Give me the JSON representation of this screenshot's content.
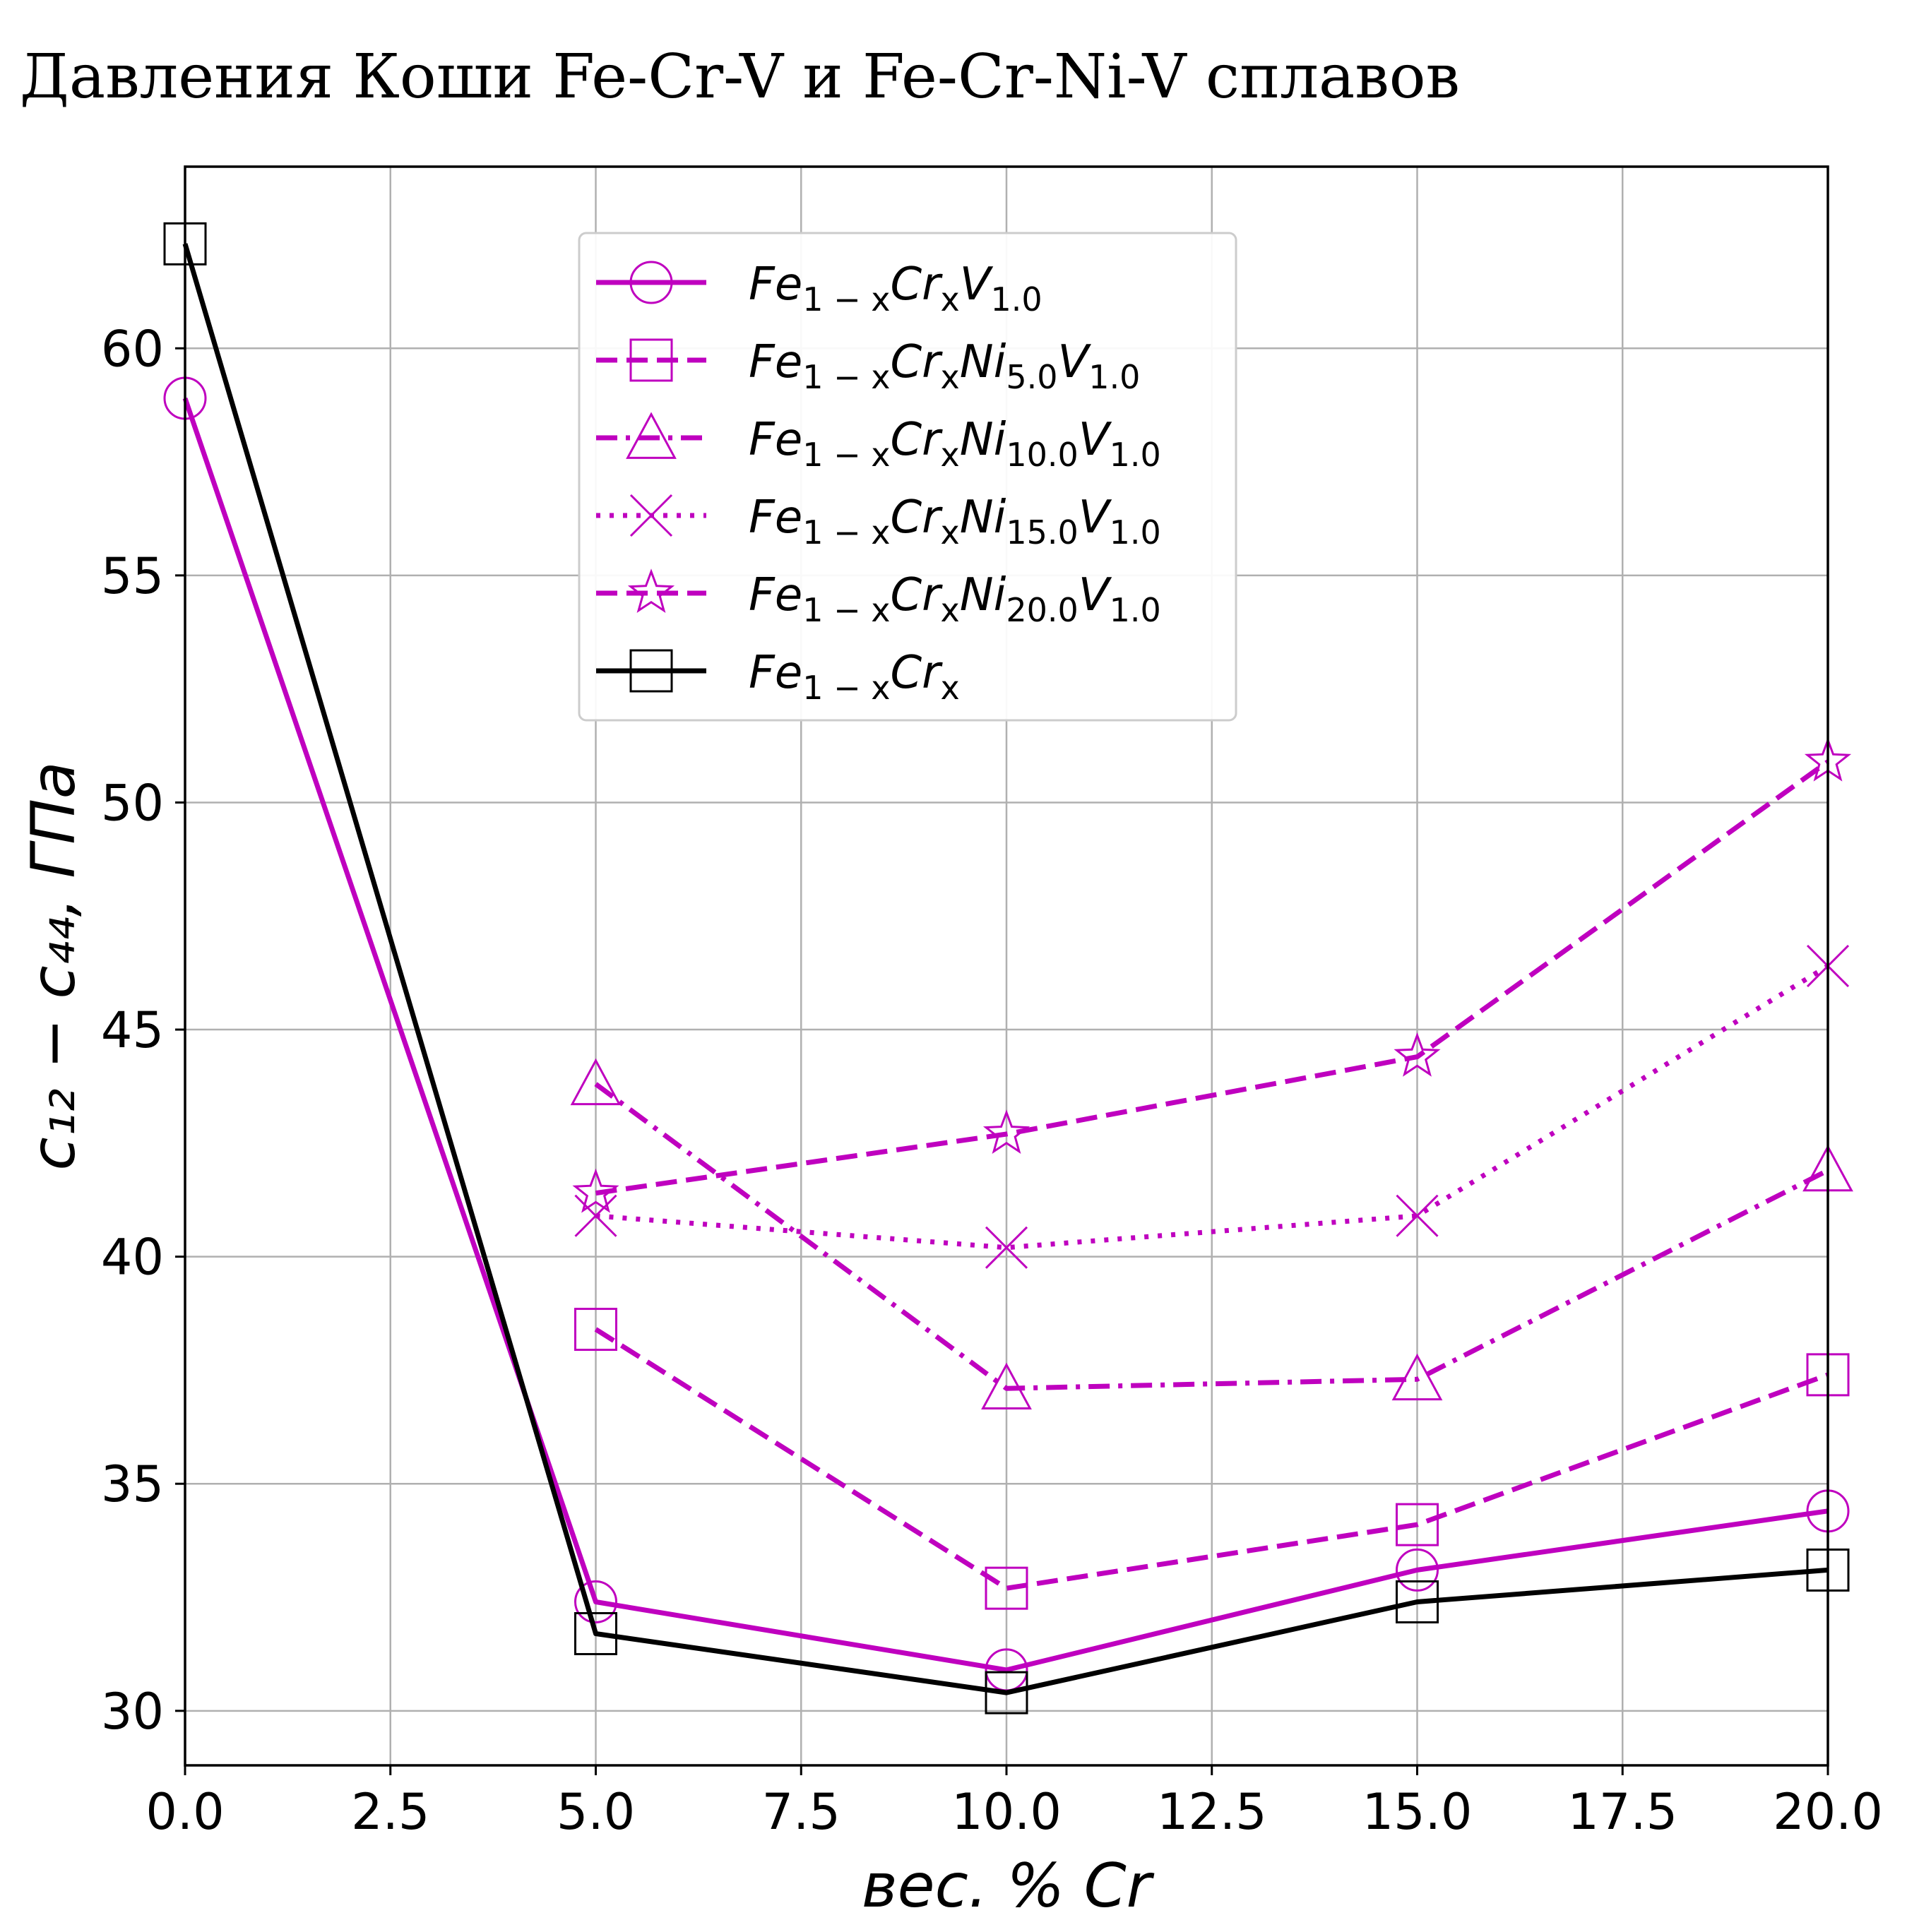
{
  "chart_data": {
    "type": "line",
    "title": "Давления Коши Fe-Cr-V и Fe-Cr-Ni-V сплавов",
    "xlabel": "вес. % Cr",
    "ylabel": "c₁₂ − c₄₄,  ГПа",
    "xlim": [
      0,
      20
    ],
    "ylim": [
      28.8,
      64
    ],
    "xticks": [
      "0.0",
      "2.5",
      "5.0",
      "7.5",
      "10.0",
      "12.5",
      "15.0",
      "17.5",
      "20.0"
    ],
    "yticks": [
      "30",
      "35",
      "40",
      "45",
      "50",
      "55",
      "60"
    ],
    "grid": true,
    "legend_position": "upper-center",
    "series": [
      {
        "name": "Fe1−xCrxV1.0",
        "legend_parts": [
          [
            "Fe",
            ""
          ],
          [
            "1 − x",
            "sub"
          ],
          [
            "Cr",
            ""
          ],
          [
            "x",
            "sub"
          ],
          [
            "V",
            ""
          ],
          [
            "1.0",
            "sub"
          ]
        ],
        "x": [
          0,
          5,
          10,
          15,
          20
        ],
        "y": [
          58.9,
          32.4,
          30.9,
          33.1,
          34.4
        ],
        "color": "#bf00bf",
        "line": "solid",
        "marker": "circle"
      },
      {
        "name": "Fe1−xCrxNi5.0V1.0",
        "legend_parts": [
          [
            "Fe",
            ""
          ],
          [
            "1 − x",
            "sub"
          ],
          [
            "Cr",
            ""
          ],
          [
            "x",
            "sub"
          ],
          [
            "Ni",
            ""
          ],
          [
            "5.0",
            "sub"
          ],
          [
            "V",
            ""
          ],
          [
            "1.0",
            "sub"
          ]
        ],
        "x": [
          5,
          10,
          15,
          20
        ],
        "y": [
          38.4,
          32.7,
          34.1,
          37.4
        ],
        "color": "#bf00bf",
        "line": "dashed",
        "marker": "square"
      },
      {
        "name": "Fe1−xCrxNi10.0V1.0",
        "legend_parts": [
          [
            "Fe",
            ""
          ],
          [
            "1 − x",
            "sub"
          ],
          [
            "Cr",
            ""
          ],
          [
            "x",
            "sub"
          ],
          [
            "Ni",
            ""
          ],
          [
            "10.0",
            "sub"
          ],
          [
            "V",
            ""
          ],
          [
            "1.0",
            "sub"
          ]
        ],
        "x": [
          5,
          10,
          15,
          20
        ],
        "y": [
          43.8,
          37.1,
          37.3,
          41.9
        ],
        "color": "#bf00bf",
        "line": "dashdot",
        "marker": "triangle"
      },
      {
        "name": "Fe1−xCrxNi15.0V1.0",
        "legend_parts": [
          [
            "Fe",
            ""
          ],
          [
            "1 − x",
            "sub"
          ],
          [
            "Cr",
            ""
          ],
          [
            "x",
            "sub"
          ],
          [
            "Ni",
            ""
          ],
          [
            "15.0",
            "sub"
          ],
          [
            "V",
            ""
          ],
          [
            "1.0",
            "sub"
          ]
        ],
        "x": [
          5,
          10,
          15,
          20
        ],
        "y": [
          40.9,
          40.2,
          40.9,
          46.4
        ],
        "color": "#bf00bf",
        "line": "dotted",
        "marker": "x"
      },
      {
        "name": "Fe1−xCrxNi20.0V1.0",
        "legend_parts": [
          [
            "Fe",
            ""
          ],
          [
            "1 − x",
            "sub"
          ],
          [
            "Cr",
            ""
          ],
          [
            "x",
            "sub"
          ],
          [
            "Ni",
            ""
          ],
          [
            "20.0",
            "sub"
          ],
          [
            "V",
            ""
          ],
          [
            "1.0",
            "sub"
          ]
        ],
        "x": [
          5,
          10,
          15,
          20
        ],
        "y": [
          41.4,
          42.7,
          44.4,
          50.9
        ],
        "color": "#bf00bf",
        "line": "dashed",
        "marker": "star"
      },
      {
        "name": "Fe1−xCrx",
        "legend_parts": [
          [
            "Fe",
            ""
          ],
          [
            "1 − x",
            "sub"
          ],
          [
            "Cr",
            ""
          ],
          [
            "x",
            "sub"
          ]
        ],
        "x": [
          0,
          5,
          10,
          15,
          20
        ],
        "y": [
          62.3,
          31.7,
          30.4,
          32.4,
          33.1
        ],
        "color": "#000000",
        "line": "solid",
        "marker": "square"
      }
    ]
  }
}
